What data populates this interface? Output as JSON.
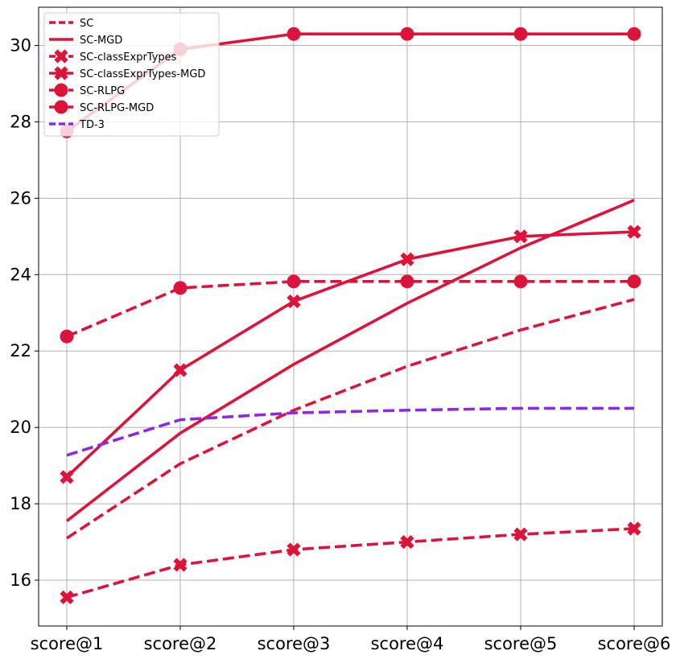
{
  "chart_data": {
    "type": "line",
    "title": "",
    "xlabel": "",
    "ylabel": "",
    "categories": [
      "score@1",
      "score@2",
      "score@3",
      "score@4",
      "score@5",
      "score@6"
    ],
    "ylim": [
      14.8,
      31.0
    ],
    "yticks": [
      16,
      18,
      20,
      22,
      24,
      26,
      28,
      30
    ],
    "grid": true,
    "legend_position": "top-left",
    "series": [
      {
        "name": "SC",
        "values": [
          17.1,
          19.05,
          20.45,
          21.6,
          22.55,
          23.35
        ],
        "color": "#dc143c",
        "dash": "dashed",
        "marker": "none"
      },
      {
        "name": "SC-MGD",
        "values": [
          17.55,
          19.85,
          21.65,
          23.25,
          24.7,
          25.95
        ],
        "color": "#dc143c",
        "dash": "solid",
        "marker": "none"
      },
      {
        "name": "SC-classExprTypes",
        "values": [
          15.55,
          16.4,
          16.8,
          17.0,
          17.2,
          17.35
        ],
        "color": "#dc143c",
        "dash": "dashed",
        "marker": "x"
      },
      {
        "name": "SC-classExprTypes-MGD",
        "values": [
          18.7,
          21.5,
          23.3,
          24.4,
          25.0,
          25.12
        ],
        "color": "#dc143c",
        "dash": "solid",
        "marker": "x"
      },
      {
        "name": "SC-RLPG",
        "values": [
          22.38,
          23.65,
          23.82,
          23.82,
          23.82,
          23.82
        ],
        "color": "#dc143c",
        "dash": "dashed",
        "marker": "circle"
      },
      {
        "name": "SC-RLPG-MGD",
        "values": [
          27.75,
          29.9,
          30.3,
          30.3,
          30.3,
          30.3
        ],
        "color": "#dc143c",
        "dash": "solid",
        "marker": "circle"
      },
      {
        "name": "TD-3",
        "values": [
          19.27,
          20.2,
          20.38,
          20.45,
          20.5,
          20.5
        ],
        "color": "#8a2be2",
        "dash": "dashed",
        "marker": "none"
      }
    ]
  }
}
